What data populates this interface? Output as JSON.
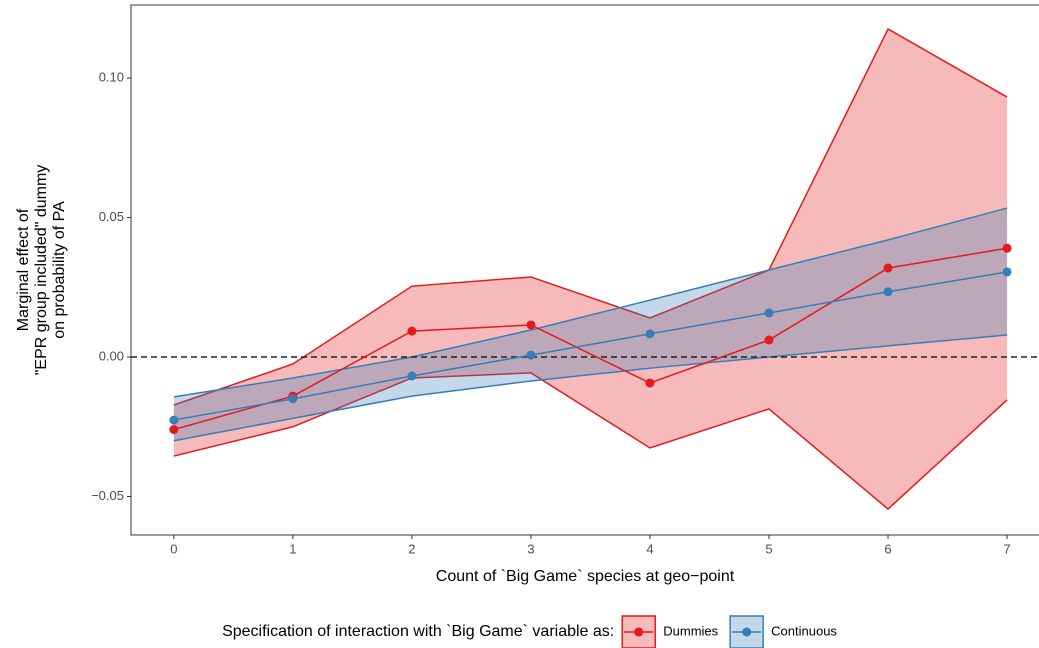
{
  "chart_data": {
    "type": "ribbon-line",
    "x_label": "Count of `Big Game` species at geo−point",
    "y_label": [
      "Marginal effect of",
      "\"EPR group included\" dummy",
      "on probability of PA"
    ],
    "legend_title": "Specification of interaction with `Big Game` variable as:",
    "x": [
      0,
      1,
      2,
      3,
      4,
      5,
      6,
      7
    ],
    "xlim": [
      -0.36,
      7.26
    ],
    "xticks": [
      0,
      1,
      2,
      3,
      4,
      5,
      6,
      7
    ],
    "ylim": [
      -0.0638,
      0.1262
    ],
    "yticks": [
      {
        "value": -0.05,
        "label": "−0.05"
      },
      {
        "value": 0,
        "label": "0.00"
      },
      {
        "value": 0.05,
        "label": "0.05"
      },
      {
        "value": 0.1,
        "label": "0.10"
      }
    ],
    "hline": 0,
    "series": [
      {
        "name": "Dummies",
        "color": "#e41a1c",
        "values": [
          -0.026,
          -0.014,
          0.0093,
          0.0115,
          -0.0093,
          0.0061,
          0.0319,
          0.039
        ],
        "lower": [
          -0.0355,
          -0.025,
          -0.0075,
          -0.0057,
          -0.0326,
          -0.0186,
          -0.0545,
          -0.0154
        ],
        "upper": [
          -0.0172,
          -0.0025,
          0.0254,
          0.0287,
          0.014,
          0.0312,
          0.1176,
          0.0932
        ]
      },
      {
        "name": "Continuous",
        "color": "#377eb8",
        "values": [
          -0.0226,
          -0.015,
          -0.0068,
          0.0007,
          0.0083,
          0.0158,
          0.0234,
          0.0305
        ],
        "lower": [
          -0.03,
          -0.022,
          -0.014,
          -0.0086,
          -0.004,
          0.0,
          0.004,
          0.0079
        ],
        "upper": [
          -0.0143,
          -0.0075,
          0.0,
          0.0097,
          0.0204,
          0.0312,
          0.042,
          0.0534
        ]
      }
    ]
  }
}
